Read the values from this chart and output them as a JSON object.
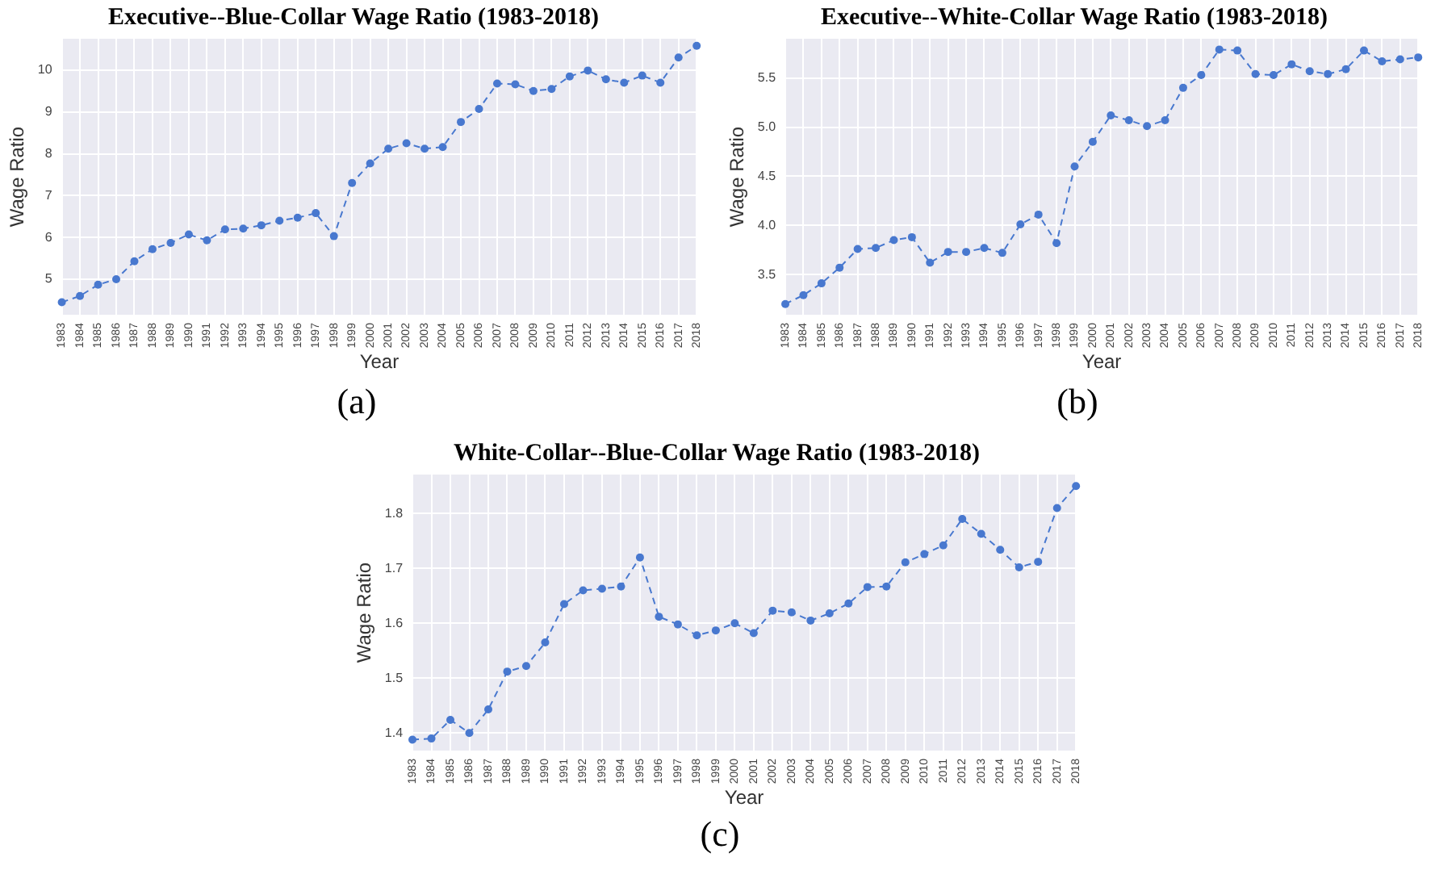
{
  "chart_data": [
    {
      "type": "line",
      "title": "Executive--Blue-Collar Wage Ratio (1983-2018)",
      "xlabel": "Year",
      "ylabel": "Wage Ratio",
      "annotations": [
        "(a)"
      ],
      "categories": [
        "1983",
        "1984",
        "1985",
        "1986",
        "1987",
        "1988",
        "1989",
        "1990",
        "1991",
        "1992",
        "1993",
        "1994",
        "1995",
        "1996",
        "1997",
        "1998",
        "1999",
        "2000",
        "2001",
        "2002",
        "2003",
        "2004",
        "2005",
        "2006",
        "2007",
        "2008",
        "2009",
        "2010",
        "2011",
        "2012",
        "2013",
        "2014",
        "2015",
        "2016",
        "2017",
        "2018"
      ],
      "series": [
        {
          "color": "#4878cf",
          "values": [
            4.45,
            4.6,
            4.87,
            5.0,
            5.43,
            5.72,
            5.87,
            6.07,
            5.93,
            6.19,
            6.21,
            6.29,
            6.4,
            6.47,
            6.58,
            6.03,
            7.3,
            7.77,
            8.12,
            8.25,
            8.12,
            8.16,
            8.76,
            9.07,
            9.68,
            9.66,
            9.5,
            9.55,
            9.85,
            9.99,
            9.78,
            9.7,
            9.87,
            9.7,
            10.3,
            10.58
          ]
        }
      ],
      "ylim": [
        4.15,
        10.75
      ],
      "yticks": [
        5,
        6,
        7,
        8,
        9,
        10
      ],
      "grid": true,
      "marker": "circle",
      "line_style": "dashed"
    },
    {
      "type": "line",
      "title": "Executive--White-Collar Wage Ratio (1983-2018)",
      "xlabel": "Year",
      "ylabel": "Wage Ratio",
      "annotations": [
        "(b)"
      ],
      "categories": [
        "1983",
        "1984",
        "1985",
        "1986",
        "1987",
        "1988",
        "1989",
        "1990",
        "1991",
        "1992",
        "1993",
        "1994",
        "1995",
        "1996",
        "1997",
        "1998",
        "1999",
        "2000",
        "2001",
        "2002",
        "2003",
        "2004",
        "2005",
        "2006",
        "2007",
        "2008",
        "2009",
        "2010",
        "2011",
        "2012",
        "2013",
        "2014",
        "2015",
        "2016",
        "2017",
        "2018"
      ],
      "series": [
        {
          "color": "#4878cf",
          "values": [
            3.2,
            3.29,
            3.41,
            3.57,
            3.76,
            3.77,
            3.85,
            3.88,
            3.62,
            3.73,
            3.73,
            3.77,
            3.72,
            4.01,
            4.11,
            3.82,
            4.6,
            4.85,
            5.12,
            5.07,
            5.01,
            5.07,
            5.4,
            5.53,
            5.79,
            5.78,
            5.54,
            5.53,
            5.64,
            5.57,
            5.54,
            5.59,
            5.78,
            5.67,
            5.69,
            5.71
          ]
        }
      ],
      "ylim": [
        3.09,
        5.9
      ],
      "yticks": [
        {
          "value": 3.5,
          "label": "3.5"
        },
        {
          "value": 4,
          "label": "4.0"
        },
        {
          "value": 4.5,
          "label": "4.5"
        },
        {
          "value": 5,
          "label": "5.0"
        },
        {
          "value": 5.5,
          "label": "5.5"
        }
      ],
      "grid": true,
      "marker": "circle",
      "line_style": "dashed"
    },
    {
      "type": "line",
      "title": "White-Collar--Blue-Collar Wage Ratio (1983-2018)",
      "xlabel": "Year",
      "ylabel": "Wage Ratio",
      "annotations": [
        "(c)"
      ],
      "categories": [
        "1983",
        "1984",
        "1985",
        "1986",
        "1987",
        "1988",
        "1989",
        "1990",
        "1991",
        "1992",
        "1993",
        "1994",
        "1995",
        "1996",
        "1997",
        "1998",
        "1999",
        "2000",
        "2001",
        "2002",
        "2003",
        "2004",
        "2005",
        "2006",
        "2007",
        "2008",
        "2009",
        "2010",
        "2011",
        "2012",
        "2013",
        "2014",
        "2015",
        "2016",
        "2017",
        "2018"
      ],
      "series": [
        {
          "color": "#4878cf",
          "values": [
            1.388,
            1.39,
            1.424,
            1.4,
            1.443,
            1.512,
            1.522,
            1.565,
            1.635,
            1.66,
            1.663,
            1.667,
            1.72,
            1.612,
            1.598,
            1.578,
            1.587,
            1.6,
            1.582,
            1.623,
            1.62,
            1.605,
            1.618,
            1.636,
            1.666,
            1.667,
            1.711,
            1.726,
            1.742,
            1.79,
            1.763,
            1.734,
            1.702,
            1.712,
            1.81,
            1.85
          ]
        }
      ],
      "ylim": [
        1.368,
        1.871
      ],
      "yticks": [
        1.4,
        1.5,
        1.6,
        1.7,
        1.8
      ],
      "grid": true,
      "marker": "circle",
      "line_style": "dashed"
    }
  ]
}
